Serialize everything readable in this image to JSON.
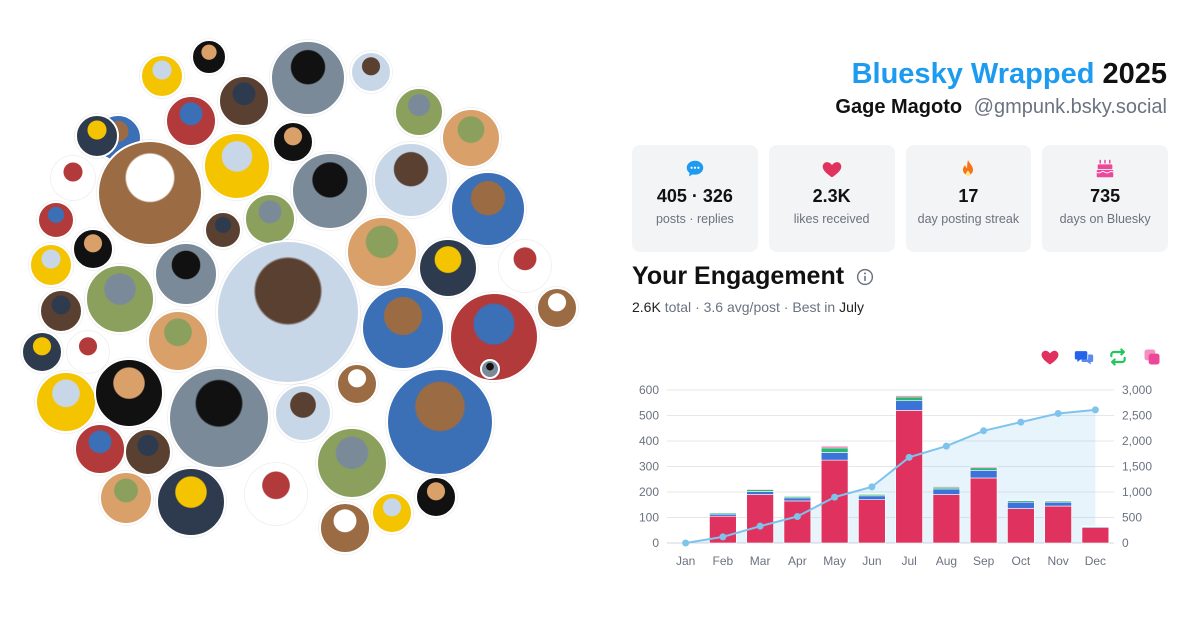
{
  "header": {
    "brand": "Bluesky Wrapped",
    "year": "2025",
    "user_name": "Gage Magoto",
    "handle": "@gmpunk.bsky.social"
  },
  "stats": [
    {
      "icon": "speech-bubble-icon",
      "color": "#1d9bf0",
      "value": "405 · 326",
      "label": "posts · replies"
    },
    {
      "icon": "heart-icon",
      "color": "#e0325f",
      "value": "2.3K",
      "label": "likes received"
    },
    {
      "icon": "flame-icon",
      "color": "#f97316",
      "value": "17",
      "label": "day posting streak"
    },
    {
      "icon": "cake-icon",
      "color": "#ec4899",
      "value": "735",
      "label": "days on Bluesky"
    }
  ],
  "engagement": {
    "title": "Your Engagement",
    "total": "2.6K",
    "total_suffix": "total",
    "avg": "3.6 avg/post",
    "best_prefix": "Best in",
    "best_month": "July",
    "legend_icons": [
      {
        "name": "likes-legend-icon",
        "color": "#e0325f"
      },
      {
        "name": "replies-legend-icon",
        "color": "#2563eb"
      },
      {
        "name": "reposts-legend-icon",
        "color": "#22c55e"
      },
      {
        "name": "quotes-legend-icon",
        "color": "#ec4899"
      }
    ]
  },
  "avatar_cloud": {
    "count": 64,
    "palette": [
      "#f5c400",
      "#111111",
      "#7a8a99",
      "#c8d7e8",
      "#3b6fb6",
      "#b33a3a",
      "#5a4030",
      "#8aa05c",
      "#d9a06a",
      "#2e3b4e",
      "#ffffff",
      "#9b6b43"
    ]
  },
  "chart_data": {
    "type": "bar",
    "categories": [
      "Jan",
      "Feb",
      "Mar",
      "Apr",
      "May",
      "Jun",
      "Jul",
      "Aug",
      "Sep",
      "Oct",
      "Nov",
      "Dec"
    ],
    "series": [
      {
        "color": "#e0325f",
        "values": [
          0,
          105,
          190,
          165,
          325,
          170,
          520,
          190,
          255,
          135,
          145,
          60
        ]
      },
      {
        "color": "#3b73d9",
        "values": [
          0,
          8,
          12,
          12,
          30,
          15,
          38,
          22,
          30,
          25,
          15,
          4
        ]
      },
      {
        "color": "#2bb673",
        "values": [
          0,
          5,
          7,
          6,
          18,
          6,
          15,
          7,
          10,
          6,
          5,
          2
        ]
      },
      {
        "color": "#ec4899",
        "values": [
          0,
          2,
          3,
          2,
          6,
          2,
          5,
          3,
          4,
          2,
          2,
          1
        ]
      }
    ],
    "cumulative_line": {
      "color": "#7ec3ec",
      "values": [
        0,
        120,
        330,
        520,
        900,
        1100,
        1680,
        1900,
        2200,
        2370,
        2540,
        2610
      ]
    },
    "y_left": {
      "ylim": [
        0,
        600
      ],
      "ticks": [
        0,
        100,
        200,
        300,
        400,
        500,
        600
      ]
    },
    "y_right": {
      "ylim": [
        0,
        3000
      ],
      "ticks": [
        "0",
        "500",
        "1,000",
        "1,500",
        "2,000",
        "2,500",
        "3,000"
      ]
    },
    "grid": true
  }
}
